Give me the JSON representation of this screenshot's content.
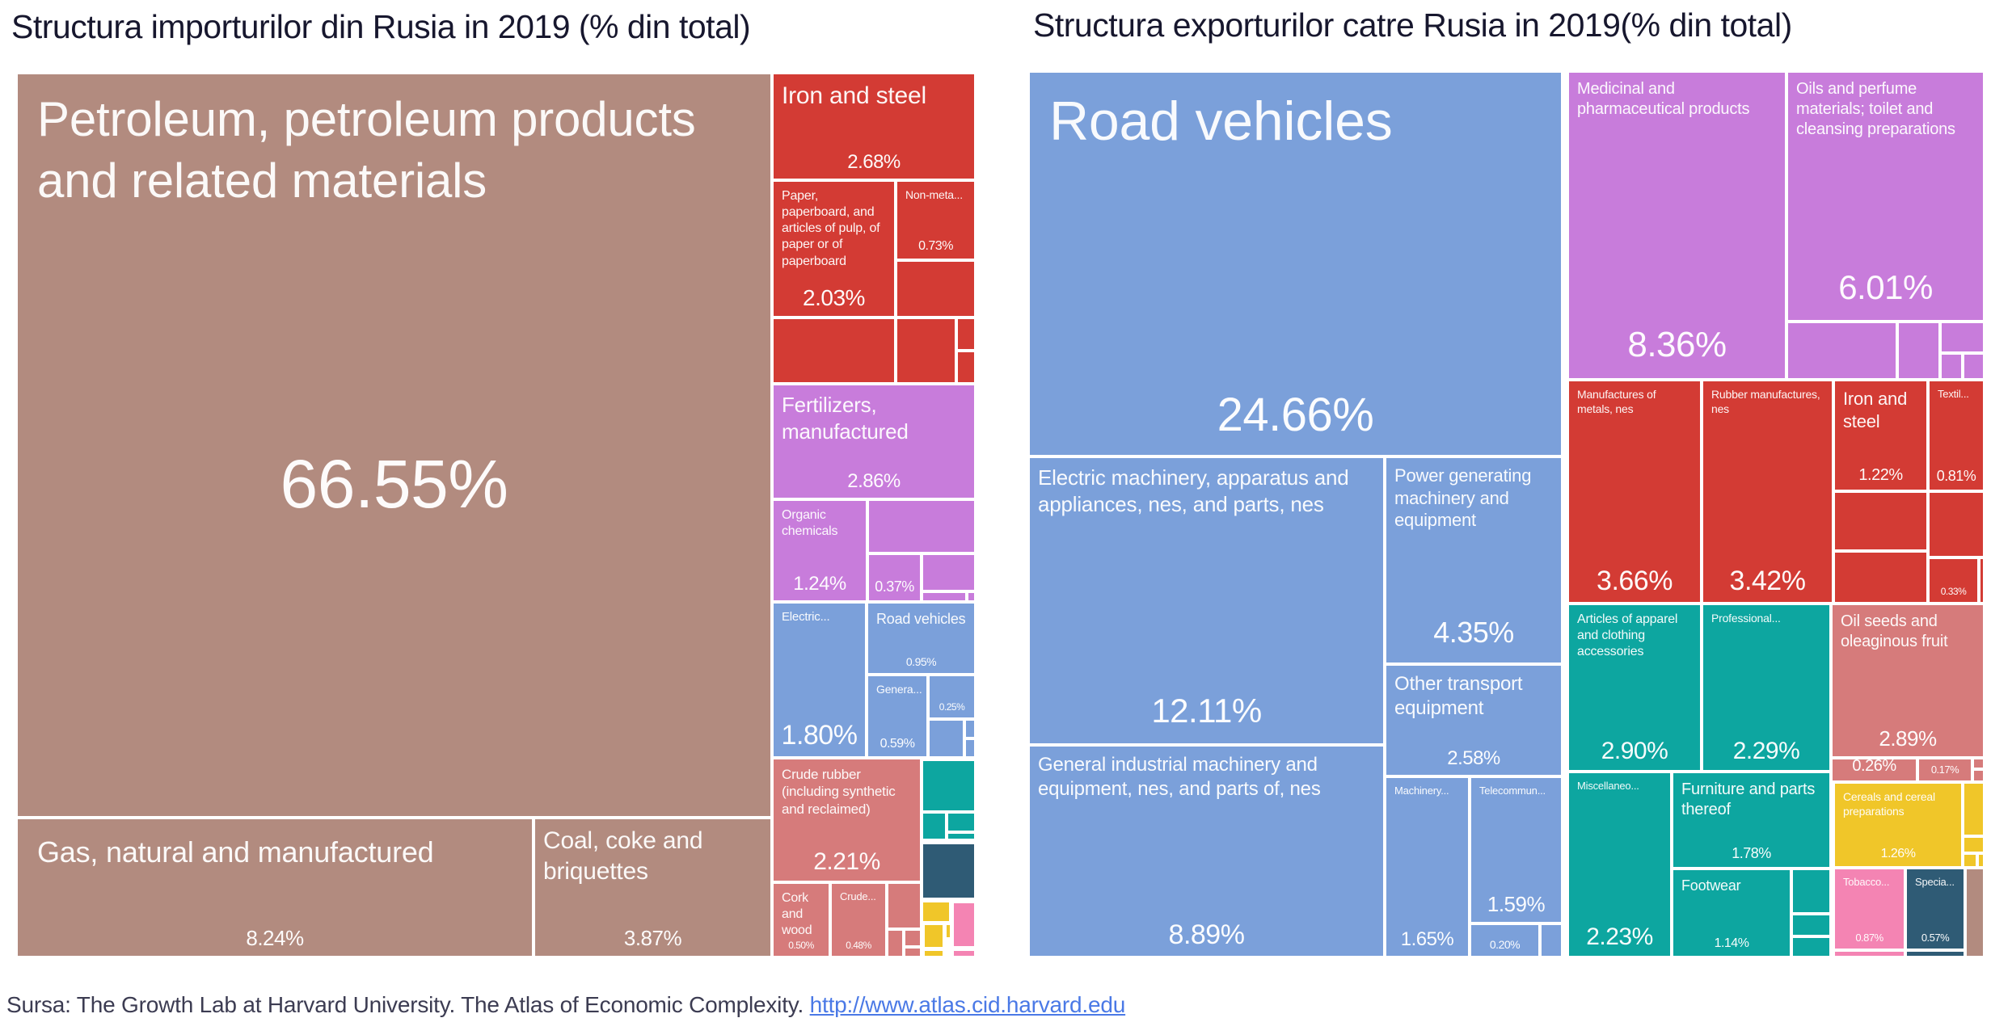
{
  "titles": {
    "left": "Structura importurilor din Rusia in 2019 (% din total)",
    "right": "Structura exporturilor catre Rusia in 2019(% din total)"
  },
  "source": {
    "prefix": "Sursa: The Growth Lab at Harvard University. The Atlas of Economic Complexity. ",
    "link_text": "http://www.atlas.cid.harvard.edu"
  },
  "colors": {
    "mauve": "#B28B7F",
    "red": "#D33B34",
    "purple": "#C87CDB",
    "blue": "#7BA0DA",
    "teal": "#0DA6A0",
    "salmon": "#D67B7B",
    "slate": "#2F5B75",
    "yellow": "#F0C629",
    "pink": "#F484B3"
  },
  "chart_data": [
    {
      "type": "treemap",
      "title": "Structura importurilor din Rusia in 2019 (% din total)",
      "units": "% din total",
      "legend": "none",
      "nodes": [
        {
          "l": "Petroleum, petroleum products and related materials",
          "v": 66.55,
          "vl": "66.55%",
          "c": "mauve",
          "r": [
            0,
            2,
            935,
            922
          ],
          "ls": 60,
          "vs": 84,
          "vm": true
        },
        {
          "l": "Gas, natural and manufactured",
          "v": 8.24,
          "vl": "8.24%",
          "c": "mauve",
          "r": [
            0,
            924,
            640,
            173
          ],
          "ls": 36,
          "vs": 26
        },
        {
          "l": "Coal, coke and briquettes",
          "v": 3.87,
          "vl": "3.87%",
          "c": "mauve",
          "r": [
            640,
            924,
            295,
            173
          ],
          "ls": 30,
          "vs": 26
        },
        {
          "l": "Iron and steel",
          "v": 2.68,
          "vl": "2.68%",
          "c": "red",
          "r": [
            935,
            2,
            252,
            133
          ],
          "ls": 30,
          "vs": 24
        },
        {
          "l": "Paper, paperboard, and articles of pulp, of paper or of paperboard",
          "v": 2.03,
          "vl": "2.03%",
          "c": "red",
          "r": [
            935,
            135,
            153,
            170
          ],
          "ls": 16,
          "vs": 28
        },
        {
          "l": "Non-meta...",
          "v": 0.73,
          "vl": "0.73%",
          "c": "red",
          "r": [
            1088,
            135,
            99,
            99
          ],
          "ls": 14,
          "vs": 16
        },
        {
          "c": "red",
          "r": [
            1088,
            234,
            99,
            71
          ]
        },
        {
          "c": "red",
          "r": [
            935,
            305,
            153,
            82
          ]
        },
        {
          "c": "red",
          "r": [
            1088,
            305,
            75,
            82
          ]
        },
        {
          "c": "red",
          "r": [
            1163,
            305,
            24,
            41
          ]
        },
        {
          "c": "red",
          "r": [
            1163,
            346,
            24,
            41
          ]
        },
        {
          "l": "Fertilizers, manufactured",
          "v": 2.86,
          "vl": "2.86%",
          "c": "purple",
          "r": [
            935,
            387,
            252,
            143
          ],
          "ls": 26,
          "vs": 24
        },
        {
          "l": "Organic chemicals",
          "v": 1.24,
          "vl": "1.24%",
          "c": "purple",
          "r": [
            935,
            530,
            118,
            127
          ],
          "ls": 16,
          "vs": 24
        },
        {
          "c": "purple",
          "r": [
            1053,
            530,
            134,
            67
          ]
        },
        {
          "v": 0.37,
          "vl": "0.37%",
          "c": "purple",
          "r": [
            1053,
            597,
            67,
            60
          ],
          "vs": 18
        },
        {
          "c": "purple",
          "r": [
            1120,
            597,
            67,
            47
          ]
        },
        {
          "c": "purple",
          "r": [
            1120,
            644,
            56,
            13
          ]
        },
        {
          "c": "purple",
          "r": [
            1176,
            644,
            11,
            13
          ]
        },
        {
          "l": "Electric...",
          "v": 1.8,
          "vl": "1.80%",
          "c": "blue",
          "r": [
            935,
            657,
            117,
            193
          ],
          "ls": 15,
          "vs": 34
        },
        {
          "l": "Road vehicles",
          "v": 0.95,
          "vl": "0.95%",
          "c": "blue",
          "r": [
            1052,
            657,
            135,
            90
          ],
          "ls": 18,
          "vs": 14
        },
        {
          "l": "Genera...",
          "v": 0.59,
          "vl": "0.59%",
          "c": "blue",
          "r": [
            1052,
            747,
            76,
            103
          ],
          "ls": 14,
          "vs": 16
        },
        {
          "v": 0.25,
          "vl": "0.25%",
          "c": "blue",
          "r": [
            1128,
            747,
            59,
            55
          ],
          "vs": 12
        },
        {
          "c": "blue",
          "r": [
            1128,
            802,
            45,
            48
          ]
        },
        {
          "c": "blue",
          "r": [
            1173,
            802,
            14,
            24
          ]
        },
        {
          "c": "blue",
          "r": [
            1173,
            826,
            14,
            24
          ]
        },
        {
          "l": "Crude rubber (including synthetic and reclaimed)",
          "v": 2.21,
          "vl": "2.21%",
          "c": "salmon",
          "r": [
            935,
            850,
            185,
            154
          ],
          "ls": 17,
          "vs": 30
        },
        {
          "l": "Cork and wood",
          "v": 0.5,
          "vl": "0.50%",
          "c": "salmon",
          "r": [
            935,
            1004,
            72,
            93
          ],
          "ls": 16,
          "vs": 12
        },
        {
          "l": "Crude...",
          "v": 0.48,
          "vl": "0.48%",
          "c": "salmon",
          "r": [
            1007,
            1004,
            70,
            93
          ],
          "ls": 13,
          "vs": 12
        },
        {
          "c": "salmon",
          "r": [
            1077,
            1004,
            43,
            58
          ]
        },
        {
          "c": "salmon",
          "r": [
            1077,
            1062,
            21,
            35
          ]
        },
        {
          "c": "salmon",
          "r": [
            1098,
            1062,
            22,
            22
          ]
        },
        {
          "c": "salmon",
          "r": [
            1098,
            1084,
            22,
            13
          ]
        },
        {
          "c": "teal",
          "r": [
            1120,
            852,
            67,
            65
          ]
        },
        {
          "c": "teal",
          "r": [
            1120,
            917,
            31,
            35
          ]
        },
        {
          "c": "teal",
          "r": [
            1151,
            917,
            36,
            25
          ]
        },
        {
          "c": "teal",
          "r": [
            1151,
            942,
            36,
            10
          ]
        },
        {
          "c": "slate",
          "r": [
            1120,
            955,
            67,
            70
          ]
        },
        {
          "c": "yellow",
          "r": [
            1120,
            1027,
            36,
            27
          ]
        },
        {
          "c": "pink",
          "r": [
            1158,
            1028,
            29,
            57
          ]
        },
        {
          "c": "yellow",
          "r": [
            1122,
            1055,
            26,
            31
          ]
        },
        {
          "c": "yellow",
          "r": [
            1149,
            1055,
            8,
            19
          ]
        },
        {
          "c": "yellow",
          "r": [
            1122,
            1087,
            26,
            10
          ]
        },
        {
          "c": "pink",
          "r": [
            1158,
            1087,
            29,
            10
          ]
        }
      ]
    },
    {
      "type": "treemap",
      "title": "Structura exporturilor catre Rusia in 2019(% din total)",
      "units": "% din total",
      "legend": "none",
      "nodes": [
        {
          "l": "Road vehicles",
          "v": 24.66,
          "vl": "24.66%",
          "c": "blue",
          "r": [
            0,
            0,
            661,
            477
          ],
          "ls": 68,
          "vs": 58
        },
        {
          "l": "Electric machinery, apparatus and appliances, nes, and parts, nes",
          "v": 12.11,
          "vl": "12.11%",
          "c": "blue",
          "r": [
            0,
            477,
            441,
            357
          ],
          "ls": 26,
          "vs": 42
        },
        {
          "l": "General industrial machinery and equipment, nes, and parts of, nes",
          "v": 8.89,
          "vl": "8.89%",
          "c": "blue",
          "r": [
            0,
            834,
            441,
            263
          ],
          "ls": 24,
          "vs": 34
        },
        {
          "l": "Power generating machinery and equipment",
          "v": 4.35,
          "vl": "4.35%",
          "c": "blue",
          "r": [
            441,
            477,
            220,
            257
          ],
          "ls": 22,
          "vs": 36
        },
        {
          "l": "Other transport equipment",
          "v": 2.58,
          "vl": "2.58%",
          "c": "blue",
          "r": [
            441,
            734,
            220,
            139
          ],
          "ls": 24,
          "vs": 24
        },
        {
          "l": "Machinery...",
          "v": 1.65,
          "vl": "1.65%",
          "c": "blue",
          "r": [
            441,
            873,
            105,
            224
          ],
          "ls": 13,
          "vs": 24
        },
        {
          "l": "Telecommun...",
          "v": 1.59,
          "vl": "1.59%",
          "c": "blue",
          "r": [
            546,
            873,
            115,
            182
          ],
          "ls": 13,
          "vs": 26
        },
        {
          "v": 0.2,
          "vl": "0.20%",
          "c": "blue",
          "r": [
            546,
            1055,
            87,
            42
          ],
          "vs": 14
        },
        {
          "c": "blue",
          "r": [
            633,
            1055,
            28,
            42
          ]
        },
        {
          "l": "Medicinal and pharmaceutical products",
          "v": 8.36,
          "vl": "8.36%",
          "c": "purple",
          "r": [
            667,
            0,
            271,
            382
          ],
          "ls": 20,
          "vs": 44
        },
        {
          "l": "Oils and perfume materials; toilet and cleansing preparations",
          "v": 6.01,
          "vl": "6.01%",
          "c": "purple",
          "r": [
            938,
            0,
            245,
            310
          ],
          "ls": 20,
          "vs": 42
        },
        {
          "c": "purple",
          "r": [
            938,
            310,
            137,
            72
          ]
        },
        {
          "c": "purple",
          "r": [
            1075,
            310,
            53,
            72
          ]
        },
        {
          "c": "purple",
          "r": [
            1128,
            310,
            55,
            39
          ]
        },
        {
          "c": "purple",
          "r": [
            1128,
            349,
            28,
            33
          ]
        },
        {
          "c": "purple",
          "r": [
            1156,
            349,
            27,
            33
          ]
        },
        {
          "l": "Manufactures of metals, nes",
          "v": 3.66,
          "vl": "3.66%",
          "c": "red",
          "r": [
            667,
            382,
            166,
            277
          ],
          "ls": 14,
          "vs": 34
        },
        {
          "l": "Rubber manufactures, nes",
          "v": 3.42,
          "vl": "3.42%",
          "c": "red",
          "r": [
            833,
            382,
            163,
            277
          ],
          "ls": 14,
          "vs": 34
        },
        {
          "l": "Iron and steel",
          "v": 1.22,
          "vl": "1.22%",
          "c": "red",
          "r": [
            996,
            382,
            117,
            138
          ],
          "ls": 22,
          "vs": 20
        },
        {
          "l": "Textil...",
          "v": 0.81,
          "vl": "0.81%",
          "c": "red",
          "r": [
            1113,
            382,
            70,
            138
          ],
          "ls": 13,
          "vs": 18
        },
        {
          "c": "red",
          "r": [
            996,
            520,
            117,
            74
          ]
        },
        {
          "c": "red",
          "r": [
            996,
            594,
            117,
            65
          ]
        },
        {
          "c": "red",
          "r": [
            1113,
            520,
            70,
            82
          ]
        },
        {
          "v": 0.33,
          "vl": "0.33%",
          "c": "red",
          "r": [
            1113,
            602,
            63,
            57
          ],
          "vs": 12
        },
        {
          "c": "red",
          "r": [
            1176,
            602,
            7,
            57
          ]
        },
        {
          "l": "Articles of apparel and clothing accessories",
          "v": 2.9,
          "vl": "2.90%",
          "c": "teal",
          "r": [
            667,
            659,
            166,
            208
          ],
          "ls": 16,
          "vs": 30
        },
        {
          "l": "Professional...",
          "v": 2.29,
          "vl": "2.29%",
          "c": "teal",
          "r": [
            833,
            659,
            160,
            208
          ],
          "ls": 14,
          "vs": 30
        },
        {
          "l": "Oil seeds and oleaginous fruit",
          "v": 2.89,
          "vl": "2.89%",
          "c": "salmon",
          "r": [
            993,
            659,
            190,
            191
          ],
          "ls": 20,
          "vs": 26
        },
        {
          "v": 0.26,
          "vl": "0.26%",
          "c": "salmon",
          "r": [
            993,
            850,
            107,
            30
          ],
          "vs": 20
        },
        {
          "v": 0.17,
          "vl": "0.17%",
          "c": "salmon",
          "r": [
            1100,
            850,
            68,
            30
          ],
          "vs": 13
        },
        {
          "c": "salmon",
          "r": [
            1168,
            850,
            15,
            14
          ]
        },
        {
          "c": "salmon",
          "r": [
            1168,
            864,
            15,
            16
          ]
        },
        {
          "l": "Miscellaneo...",
          "v": 2.23,
          "vl": "2.23%",
          "c": "teal",
          "r": [
            667,
            867,
            129,
            230
          ],
          "ls": 13,
          "vs": 30
        },
        {
          "l": "Furniture and parts thereof",
          "v": 1.78,
          "vl": "1.78%",
          "c": "teal",
          "r": [
            796,
            867,
            197,
            120
          ],
          "ls": 20,
          "vs": 18
        },
        {
          "l": "Footwear",
          "v": 1.14,
          "vl": "1.14%",
          "c": "teal",
          "r": [
            796,
            987,
            148,
            110
          ],
          "ls": 18,
          "vs": 16
        },
        {
          "c": "teal",
          "r": [
            944,
            987,
            49,
            56
          ]
        },
        {
          "c": "teal",
          "r": [
            944,
            1043,
            49,
            28
          ]
        },
        {
          "c": "teal",
          "r": [
            944,
            1071,
            49,
            26
          ]
        },
        {
          "l": "Cereals and cereal preparations",
          "v": 1.26,
          "vl": "1.26%",
          "c": "yellow",
          "r": [
            996,
            880,
            160,
            106
          ],
          "ls": 14,
          "vs": 16
        },
        {
          "c": "yellow",
          "r": [
            1156,
            880,
            27,
            67
          ]
        },
        {
          "c": "yellow",
          "r": [
            1156,
            947,
            27,
            21
          ]
        },
        {
          "c": "yellow",
          "r": [
            1156,
            968,
            18,
            18
          ]
        },
        {
          "c": "yellow",
          "r": [
            1174,
            968,
            9,
            18
          ]
        },
        {
          "l": "Tobacco...",
          "v": 0.87,
          "vl": "0.87%",
          "c": "pink",
          "r": [
            996,
            986,
            89,
            102
          ],
          "ls": 13,
          "vs": 13
        },
        {
          "c": "pink",
          "r": [
            996,
            1088,
            89,
            9
          ]
        },
        {
          "l": "Specia...",
          "v": 0.57,
          "vl": "0.57%",
          "c": "slate",
          "r": [
            1085,
            986,
            74,
            102
          ],
          "ls": 13,
          "vs": 13
        },
        {
          "c": "slate",
          "r": [
            1085,
            1088,
            74,
            9
          ]
        },
        {
          "c": "mauve",
          "r": [
            1159,
            986,
            24,
            111
          ]
        }
      ]
    }
  ]
}
